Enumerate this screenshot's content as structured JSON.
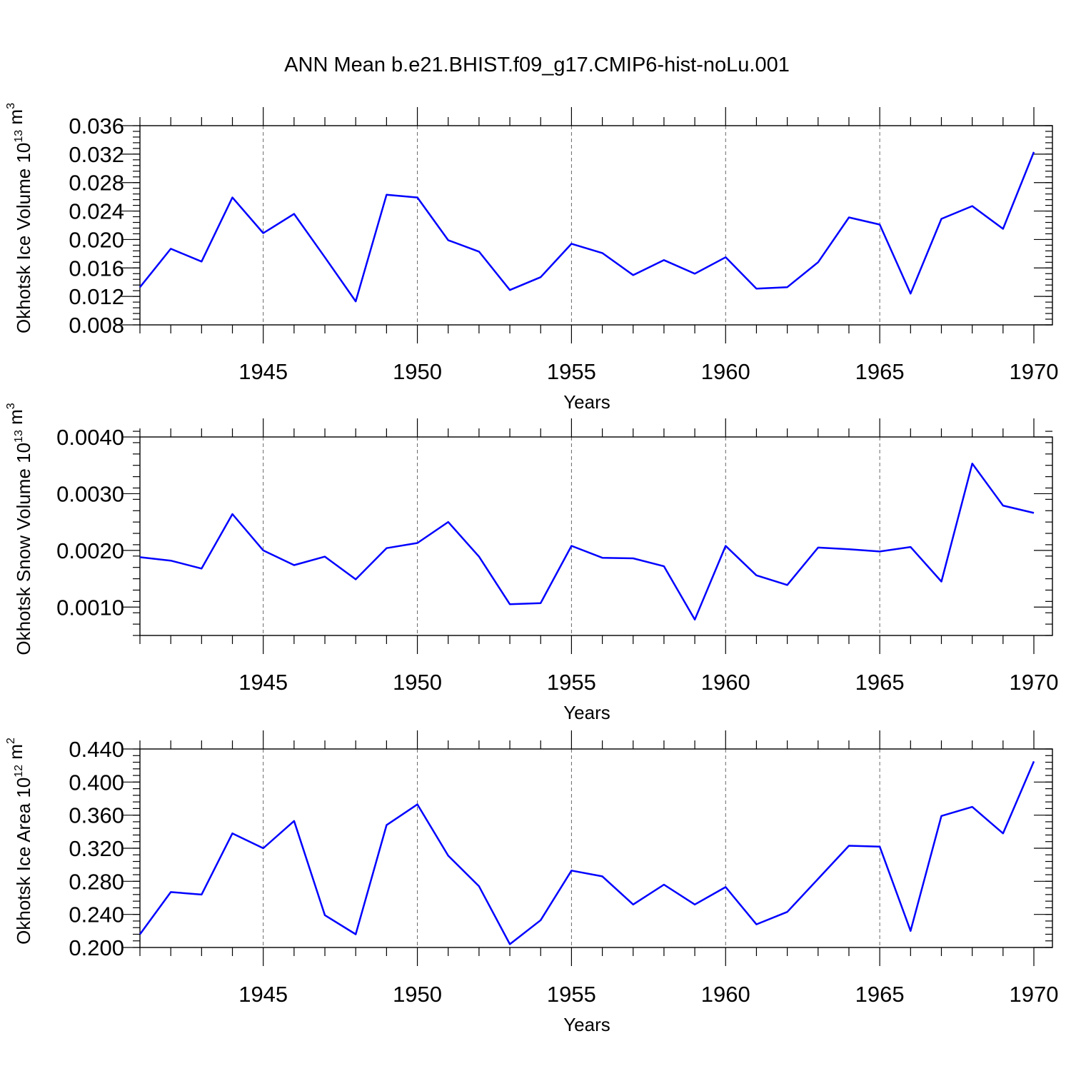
{
  "figure": {
    "title": "ANN Mean b.e21.BHIST.f09_g17.CMIP6-hist-noLu.001",
    "series_color": "#0000ff"
  },
  "chart_data": [
    {
      "type": "line",
      "xlabel": "Years",
      "ylabel": {
        "text": "Okhotsk Ice Volume 10",
        "exp": "13",
        "unit": " m",
        "unit_exp": "3"
      },
      "xlim": [
        1941,
        1970
      ],
      "ylim": [
        0.008,
        0.036
      ],
      "x_ticks": [
        1945,
        1950,
        1955,
        1960,
        1965,
        1970
      ],
      "y_ticks": [
        0.008,
        0.012,
        0.016,
        0.02,
        0.024,
        0.028,
        0.032,
        0.036
      ],
      "y_tick_labels": [
        "0.008",
        "0.012",
        "0.016",
        "0.020",
        "0.024",
        "0.028",
        "0.032",
        "0.036"
      ],
      "y_minor_step": 0.0008,
      "grid": "vertical dashed at x ticks",
      "x": [
        1941,
        1942,
        1943,
        1944,
        1945,
        1946,
        1947,
        1948,
        1949,
        1950,
        1951,
        1952,
        1953,
        1954,
        1955,
        1956,
        1957,
        1958,
        1959,
        1960,
        1961,
        1962,
        1963,
        1964,
        1965,
        1966,
        1967,
        1968,
        1969,
        1970
      ],
      "y": [
        0.0133,
        0.0187,
        0.0169,
        0.0259,
        0.0209,
        0.0236,
        0.0175,
        0.0113,
        0.0263,
        0.0259,
        0.0199,
        0.0183,
        0.0129,
        0.0147,
        0.0194,
        0.0181,
        0.015,
        0.0171,
        0.0152,
        0.0175,
        0.0131,
        0.0133,
        0.0168,
        0.0231,
        0.0221,
        0.0124,
        0.0229,
        0.0247,
        0.0215,
        0.0323
      ]
    },
    {
      "type": "line",
      "xlabel": "Years",
      "ylabel": {
        "text": "Okhotsk Snow Volume 10",
        "exp": "13",
        "unit": " m",
        "unit_exp": "3"
      },
      "xlim": [
        1941,
        1970
      ],
      "ylim": [
        0.0005,
        0.004
      ],
      "x_ticks": [
        1945,
        1950,
        1955,
        1960,
        1965,
        1970
      ],
      "y_ticks": [
        0.001,
        0.002,
        0.003,
        0.004
      ],
      "y_tick_labels": [
        "0.0010",
        "0.0020",
        "0.0030",
        "0.0040"
      ],
      "y_minor_step": 0.0002,
      "grid": "vertical dashed at x ticks",
      "x": [
        1941,
        1942,
        1943,
        1944,
        1945,
        1946,
        1947,
        1948,
        1949,
        1950,
        1951,
        1952,
        1953,
        1954,
        1955,
        1956,
        1957,
        1958,
        1959,
        1960,
        1961,
        1962,
        1963,
        1964,
        1965,
        1966,
        1967,
        1968,
        1969,
        1970
      ],
      "y": [
        0.00188,
        0.00182,
        0.00168,
        0.00264,
        0.002,
        0.00174,
        0.00189,
        0.00149,
        0.00204,
        0.00213,
        0.0025,
        0.00189,
        0.00105,
        0.00107,
        0.00208,
        0.00187,
        0.00186,
        0.00172,
        0.00078,
        0.00208,
        0.00156,
        0.00139,
        0.00205,
        0.00202,
        0.00198,
        0.00206,
        0.00145,
        0.00353,
        0.00279,
        0.00266
      ]
    },
    {
      "type": "line",
      "xlabel": "Years",
      "ylabel": {
        "text": "Okhotsk Ice Area 10",
        "exp": "12",
        "unit": " m",
        "unit_exp": "2"
      },
      "xlim": [
        1941,
        1970
      ],
      "ylim": [
        0.2,
        0.44
      ],
      "x_ticks": [
        1945,
        1950,
        1955,
        1960,
        1965,
        1970
      ],
      "y_ticks": [
        0.2,
        0.24,
        0.28,
        0.32,
        0.36,
        0.4,
        0.44
      ],
      "y_tick_labels": [
        "0.200",
        "0.240",
        "0.280",
        "0.320",
        "0.360",
        "0.400",
        "0.440"
      ],
      "y_minor_step": 0.008,
      "grid": "vertical dashed at x ticks",
      "x": [
        1941,
        1942,
        1943,
        1944,
        1945,
        1946,
        1947,
        1948,
        1949,
        1950,
        1951,
        1952,
        1953,
        1954,
        1955,
        1956,
        1957,
        1958,
        1959,
        1960,
        1961,
        1962,
        1963,
        1964,
        1965,
        1966,
        1967,
        1968,
        1969,
        1970
      ],
      "y": [
        0.216,
        0.267,
        0.264,
        0.338,
        0.32,
        0.353,
        0.239,
        0.216,
        0.348,
        0.373,
        0.311,
        0.274,
        0.204,
        0.233,
        0.293,
        0.286,
        0.252,
        0.276,
        0.252,
        0.273,
        0.228,
        0.243,
        0.283,
        0.323,
        0.322,
        0.22,
        0.359,
        0.37,
        0.338,
        0.425
      ]
    }
  ]
}
